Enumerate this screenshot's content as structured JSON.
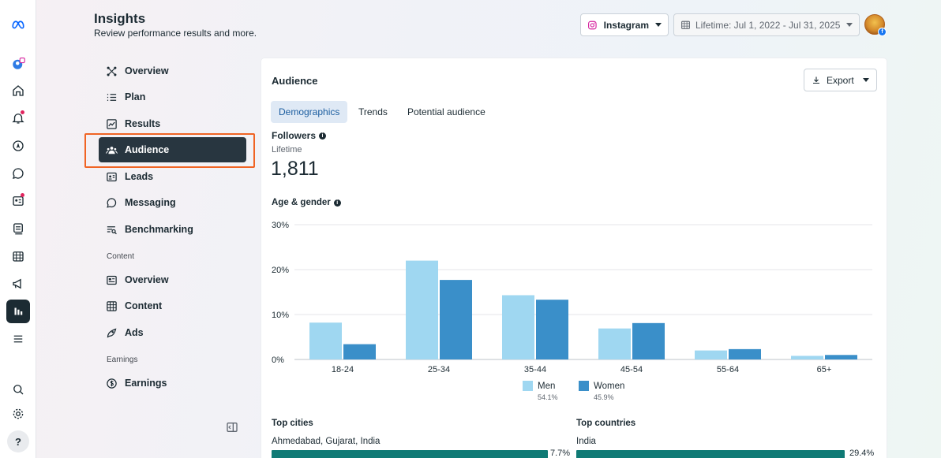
{
  "header": {
    "title": "Insights",
    "subtitle": "Review performance results and more.",
    "platform": "Instagram",
    "date_range": "Lifetime: Jul 1, 2022 - Jul 31, 2025"
  },
  "rail": {
    "items": [
      "meta-logo-icon",
      "account-avatar-icon",
      "home-icon",
      "notifications-icon",
      "compass-icon",
      "chat-icon",
      "contacts-icon",
      "posts-icon",
      "calendar-icon",
      "megaphone-icon",
      "insights-icon",
      "menu-icon",
      "search-icon",
      "settings-icon",
      "help-icon"
    ],
    "help_label": "?"
  },
  "nav": {
    "items": [
      {
        "label": "Overview",
        "icon": "overview-icon"
      },
      {
        "label": "Plan",
        "icon": "plan-icon"
      },
      {
        "label": "Results",
        "icon": "results-icon"
      },
      {
        "label": "Audience",
        "icon": "audience-icon",
        "active": true
      },
      {
        "label": "Leads",
        "icon": "leads-icon"
      },
      {
        "label": "Messaging",
        "icon": "messaging-icon"
      },
      {
        "label": "Benchmarking",
        "icon": "benchmarking-icon"
      }
    ],
    "content_section": "Content",
    "content_items": [
      {
        "label": "Overview",
        "icon": "content-overview-icon"
      },
      {
        "label": "Content",
        "icon": "content-grid-icon"
      },
      {
        "label": "Ads",
        "icon": "ads-icon"
      }
    ],
    "earnings_section": "Earnings",
    "earnings_items": [
      {
        "label": "Earnings",
        "icon": "earnings-icon"
      }
    ]
  },
  "card": {
    "title": "Audience",
    "export_label": "Export",
    "tabs": [
      "Demographics",
      "Trends",
      "Potential audience"
    ],
    "active_tab": "Demographics",
    "followers_label": "Followers",
    "followers_period": "Lifetime",
    "followers_value": "1,811",
    "age_gender_label": "Age & gender",
    "legend": [
      {
        "name": "Men",
        "pct": "54.1%",
        "color": "#9fd7f1"
      },
      {
        "name": "Women",
        "pct": "45.9%",
        "color": "#3a8fc9"
      }
    ],
    "top_cities_label": "Top cities",
    "top_city": "Ahmedabad, Gujarat, India",
    "top_city_pct": "7.7%",
    "top_city_value": 7.7,
    "top_countries_label": "Top countries",
    "top_country": "India",
    "top_country_pct": "29.4%",
    "top_country_value": 29.4
  },
  "chart_data": {
    "type": "bar",
    "categories": [
      "18-24",
      "25-34",
      "35-44",
      "45-54",
      "55-64",
      "65+"
    ],
    "series": [
      {
        "name": "Men",
        "values": [
          8.2,
          22.0,
          14.3,
          6.9,
          2.0,
          0.8
        ],
        "color": "#9fd7f1"
      },
      {
        "name": "Women",
        "values": [
          3.4,
          17.7,
          13.3,
          8.1,
          2.3,
          1.0
        ],
        "color": "#3a8fc9"
      }
    ],
    "yticks": [
      "0%",
      "10%",
      "20%",
      "30%"
    ],
    "ylim": [
      0,
      30
    ],
    "grid": true,
    "legend_position": "bottom"
  }
}
